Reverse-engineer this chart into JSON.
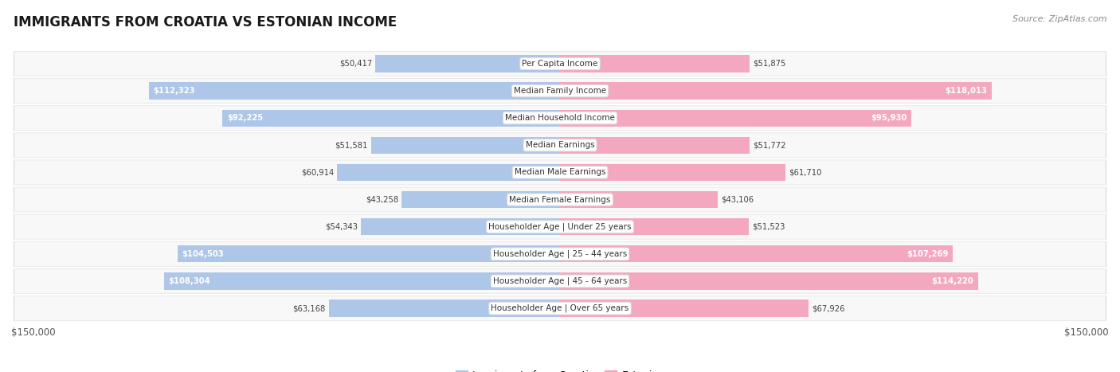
{
  "title": "IMMIGRANTS FROM CROATIA VS ESTONIAN INCOME",
  "source": "Source: ZipAtlas.com",
  "categories": [
    "Per Capita Income",
    "Median Family Income",
    "Median Household Income",
    "Median Earnings",
    "Median Male Earnings",
    "Median Female Earnings",
    "Householder Age | Under 25 years",
    "Householder Age | 25 - 44 years",
    "Householder Age | 45 - 64 years",
    "Householder Age | Over 65 years"
  ],
  "croatia_values": [
    50417,
    112323,
    92225,
    51581,
    60914,
    43258,
    54343,
    104503,
    108304,
    63168
  ],
  "estonian_values": [
    51875,
    118013,
    95930,
    51772,
    61710,
    43106,
    51523,
    107269,
    114220,
    67926
  ],
  "croatia_labels": [
    "$50,417",
    "$112,323",
    "$92,225",
    "$51,581",
    "$60,914",
    "$43,258",
    "$54,343",
    "$104,503",
    "$108,304",
    "$63,168"
  ],
  "estonian_labels": [
    "$51,875",
    "$118,013",
    "$95,930",
    "$51,772",
    "$61,710",
    "$43,106",
    "$51,523",
    "$107,269",
    "$114,220",
    "$67,926"
  ],
  "max_value": 150000,
  "croatia_color": "#aec6e8",
  "estonian_color": "#f4a8c0",
  "bar_height": 0.62,
  "row_bg_color": "#e8e8e8",
  "row_inner_color": "#f8f8f8",
  "background_color": "#ffffff",
  "legend_croatia": "Immigrants from Croatia",
  "legend_estonian": "Estonian",
  "xlabel_left": "$150,000",
  "xlabel_right": "$150,000",
  "croatia_label_threshold": 75000,
  "estonian_label_threshold": 75000
}
